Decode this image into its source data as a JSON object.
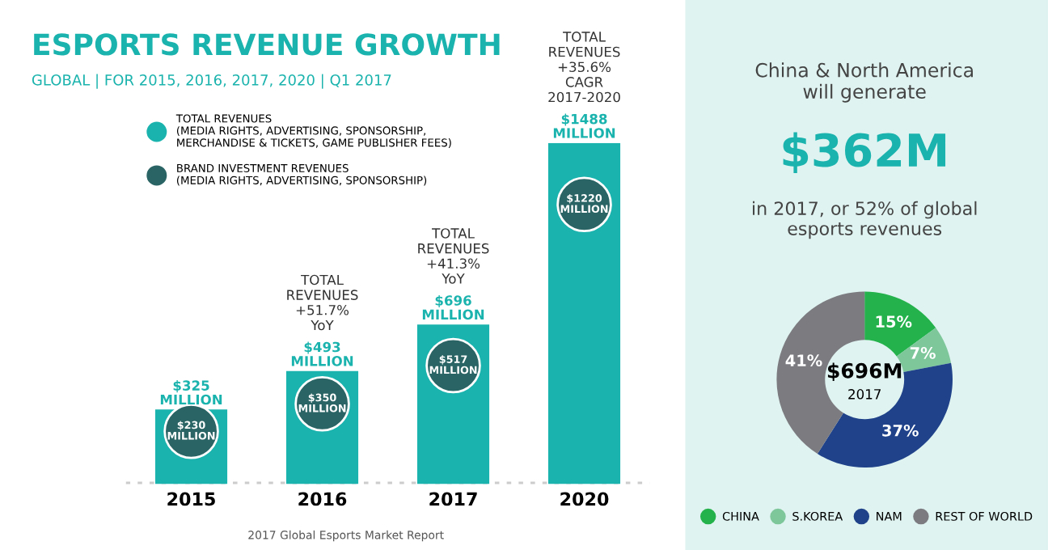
{
  "chart_data": [
    {
      "type": "bar",
      "title": "ESPORTS REVENUE GROWTH",
      "subtitle": "GLOBAL | FOR 2015, 2016, 2017, 2020 | Q1 2017",
      "categories": [
        "2015",
        "2016",
        "2017",
        "2020"
      ],
      "series": [
        {
          "name": "TOTAL REVENUES\n(MEDIA RIGHTS, ADVERTISING, SPONSORSHIP,\nMERCHANDISE & TICKETS, GAME PUBLISHER FEES)",
          "color": "#1bb3ad",
          "values": [
            325,
            493,
            696,
            1488
          ],
          "value_labels": [
            "$325\nMILLION",
            "$493\nMILLION",
            "$696\nMILLION",
            "$1488\nMILLION"
          ]
        },
        {
          "type": "scatter",
          "name": "BRAND INVESTMENT REVENUES\n(MEDIA RIGHTS, ADVERTISING, SPONSORSHIP)",
          "color": "#2b6464",
          "values": [
            230,
            350,
            517,
            1220
          ],
          "value_labels": [
            "$230\nMILLION",
            "$350\nMILLION",
            "$517\nMILLION",
            "$1220\nMILLION"
          ]
        }
      ],
      "marker": "circle",
      "legend": "top left",
      "annotations": [
        "TOTAL\nREVENUES\n+51.7%\nYoY",
        "TOTAL\nREVENUES\n+41.3%\nYoY",
        "TOTAL\nREVENUES\n+35.6%\nCAGR\n2017-2020",
        "2017 Global Esports Market Report"
      ]
    },
    {
      "type": "donut",
      "title": "China & North America\nwill generate",
      "subtitle": "$362M",
      "categories": [
        "CHINA",
        "S.KOREA",
        "NAM",
        "REST OF WORLD"
      ],
      "values": [
        15,
        7,
        37,
        41
      ],
      "colors": [
        "#23b24b",
        "#7dc79b",
        "#1f428a",
        "#7b7b80"
      ],
      "value_labels": [
        "15%",
        "7%",
        "37%",
        "41%"
      ],
      "legend": "bottom",
      "annotations": [
        "in 2017, or 52% of global\nesports revenues",
        "$696M",
        "2017"
      ]
    }
  ]
}
